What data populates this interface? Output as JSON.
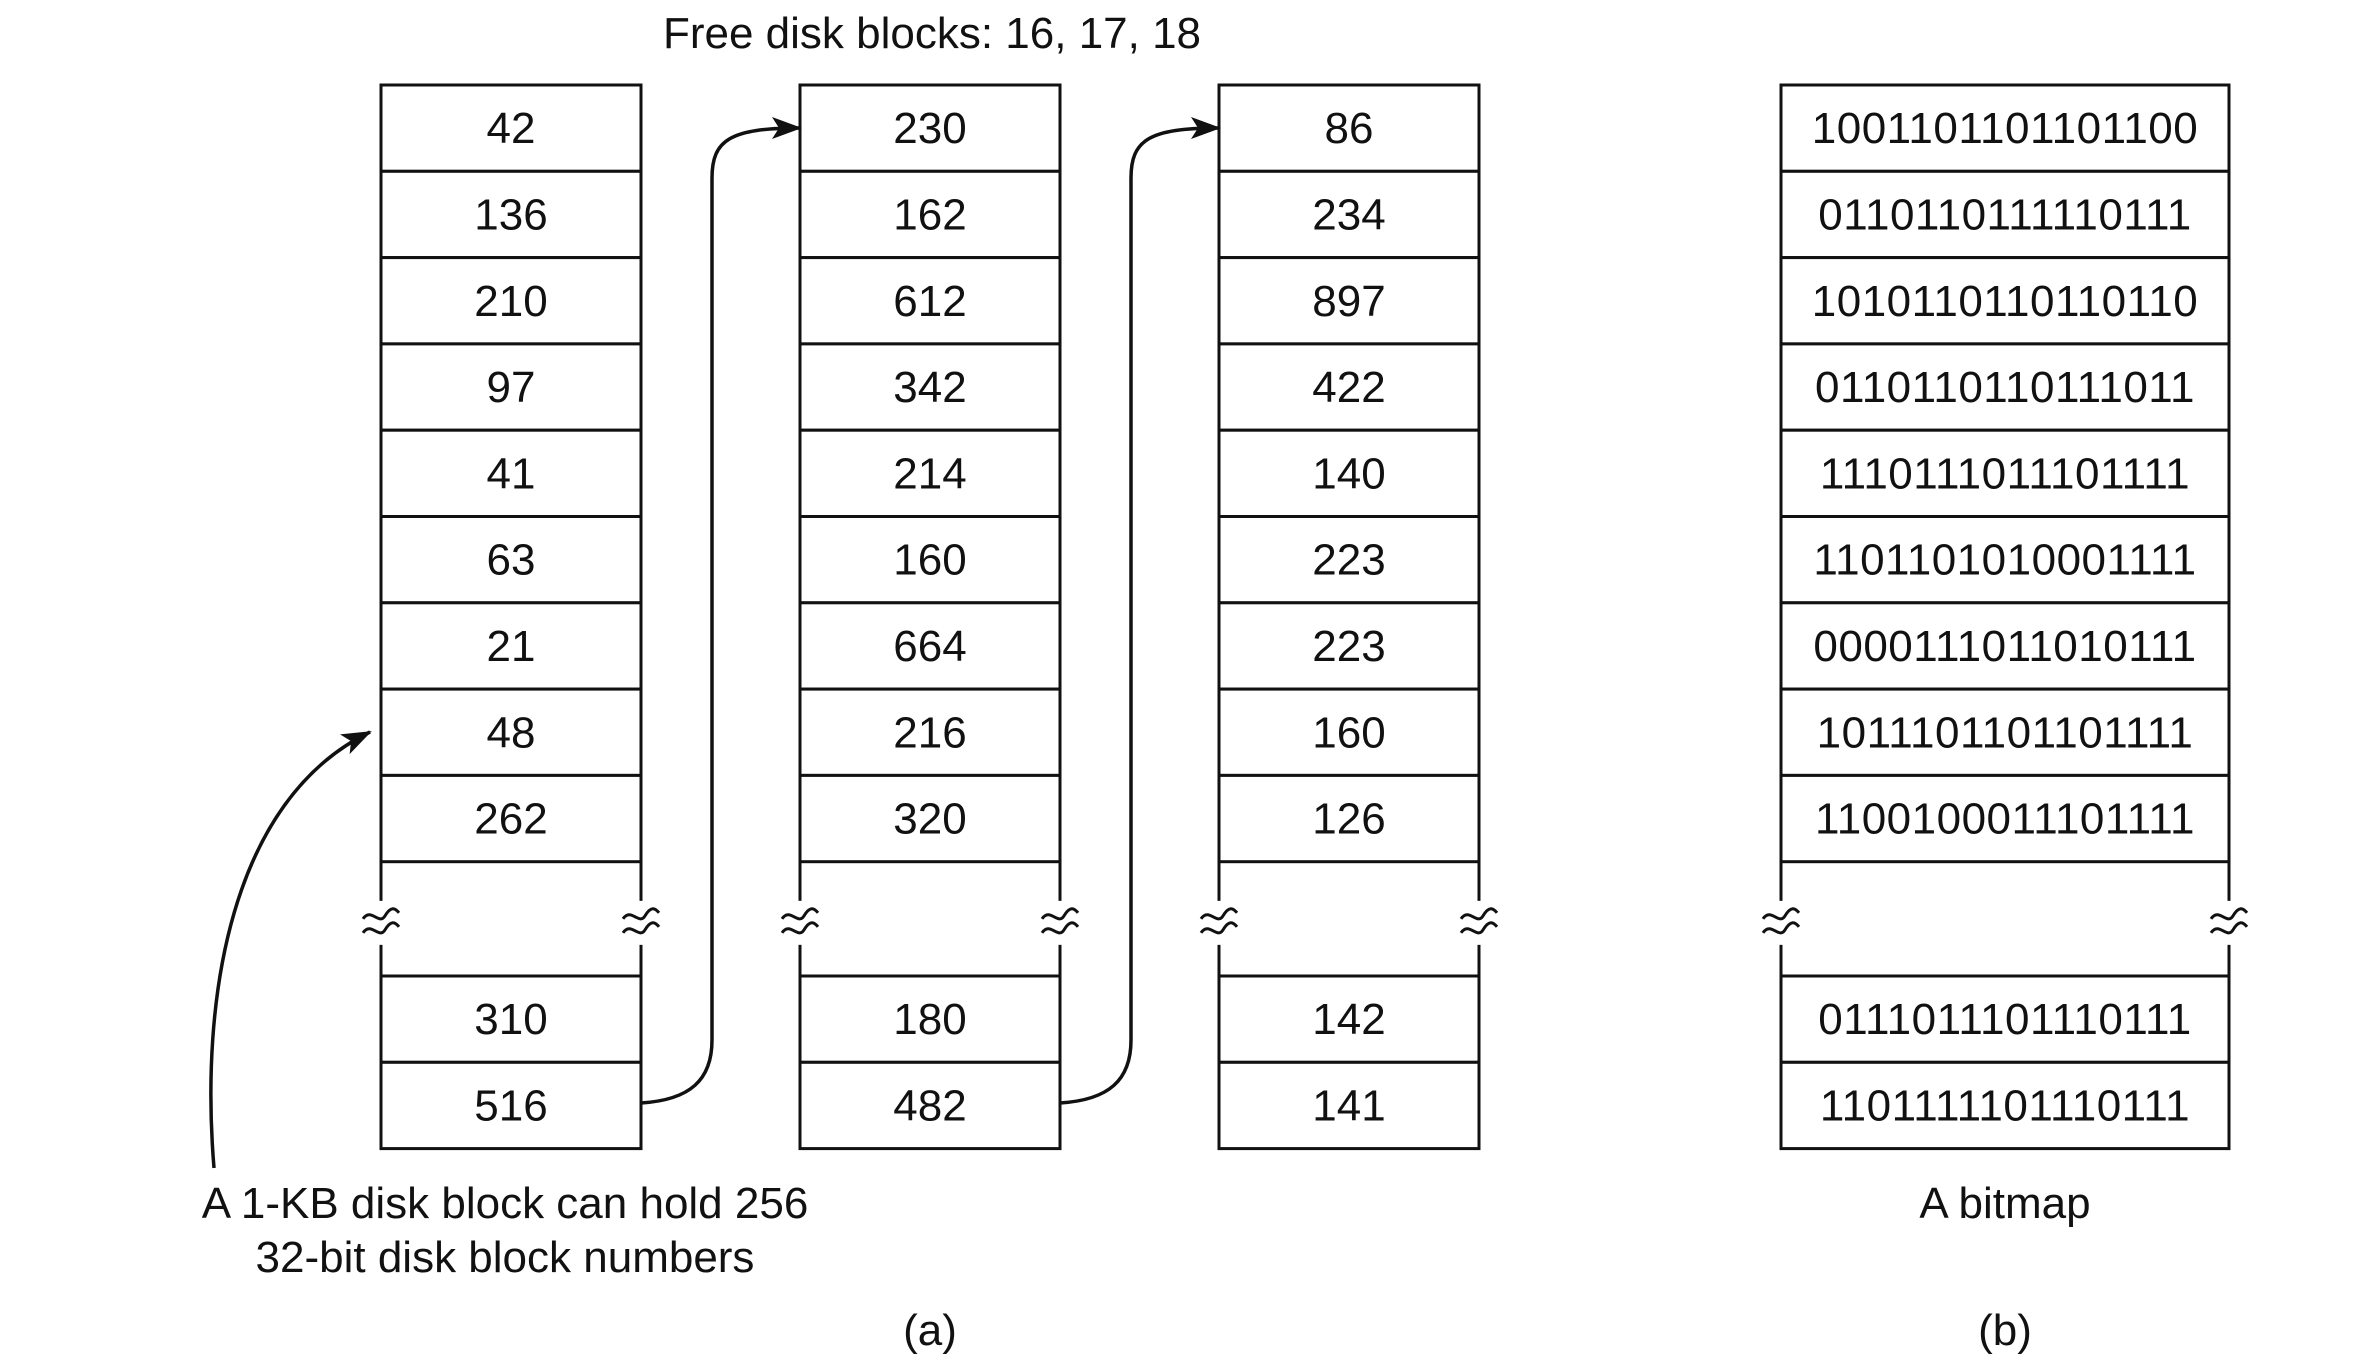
{
  "title": "Free disk blocks: 16, 17, 18",
  "part_a": {
    "label": "(a)",
    "caption_line1": "A 1-KB disk block can hold 256",
    "caption_line2": "32-bit disk block numbers",
    "blocks": [
      {
        "top": [
          "42",
          "136",
          "210",
          "97",
          "41",
          "63",
          "21",
          "48",
          "262"
        ],
        "bottom": [
          "310",
          "516"
        ]
      },
      {
        "top": [
          "230",
          "162",
          "612",
          "342",
          "214",
          "160",
          "664",
          "216",
          "320"
        ],
        "bottom": [
          "180",
          "482"
        ]
      },
      {
        "top": [
          "86",
          "234",
          "897",
          "422",
          "140",
          "223",
          "223",
          "160",
          "126"
        ],
        "bottom": [
          "142",
          "141"
        ]
      }
    ]
  },
  "part_b": {
    "label": "(b)",
    "caption": "A bitmap",
    "top": [
      "1001101101101100",
      "0110110111110111",
      "1010110110110110",
      "0110110110111011",
      "1110111011101111",
      "1101101010001111",
      "0000111011010111",
      "1011101101101111",
      "1100100011101111"
    ],
    "bottom": [
      "0111011101110111",
      "1101111101110111"
    ]
  },
  "colors": {
    "ink": "#111111",
    "background": "#ffffff"
  },
  "icons": {
    "gap": "wavy-break-marks",
    "pointer": "curved-arrow"
  }
}
